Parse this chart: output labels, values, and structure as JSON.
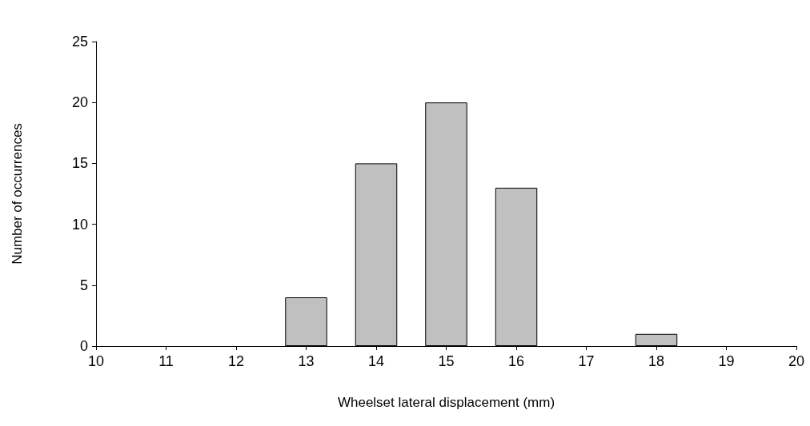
{
  "chart_data": {
    "type": "bar",
    "xlabel": "Wheelset lateral displacement (mm)",
    "ylabel": "Number of occurrences",
    "x": [
      13,
      14,
      15,
      16,
      18
    ],
    "values": [
      4,
      15,
      20,
      13,
      1
    ],
    "color": "#c0c0c0",
    "xlim": [
      10,
      20
    ],
    "xticks": [
      10,
      11,
      12,
      13,
      14,
      15,
      16,
      17,
      18,
      19,
      20
    ],
    "ylim": [
      0,
      25
    ],
    "yticks": [
      0,
      5,
      10,
      15,
      20,
      25
    ],
    "grid": false
  }
}
